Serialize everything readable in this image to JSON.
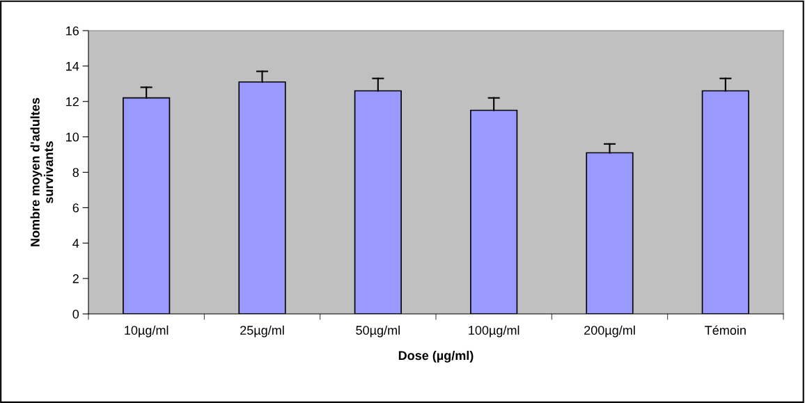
{
  "chart_data": {
    "type": "bar",
    "xlabel": "Dose (µg/ml)",
    "ylabel": "Nombre moyen d'adultes\nsurvivants",
    "categories": [
      "10µg/ml",
      "25µg/ml",
      "50µg/ml",
      "100µg/ml",
      "200µg/ml",
      "Témoin"
    ],
    "values": [
      12.2,
      13.1,
      12.6,
      11.5,
      9.1,
      12.6
    ],
    "errors": [
      [
        12.2,
        12.8
      ],
      [
        13.1,
        13.7
      ],
      [
        12.6,
        13.3
      ],
      [
        11.5,
        12.2
      ],
      [
        9.1,
        9.6
      ],
      [
        12.6,
        13.3
      ]
    ],
    "color": "#9999ff",
    "ylim": [
      0,
      16
    ],
    "yticks": [
      0,
      2,
      4,
      6,
      8,
      10,
      12,
      14,
      16
    ],
    "grid": false
  }
}
